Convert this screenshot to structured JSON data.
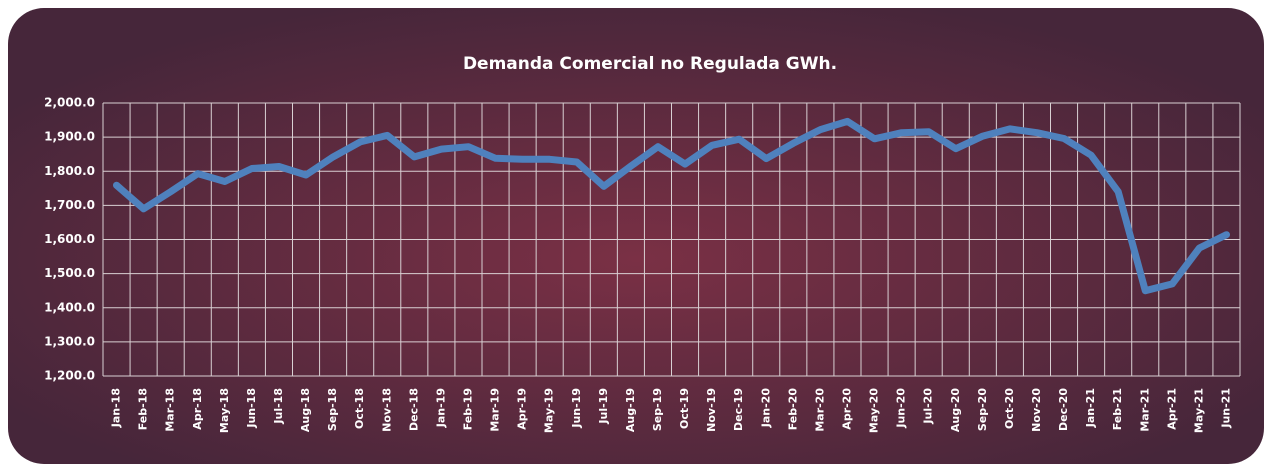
{
  "chart_data": {
    "type": "line",
    "title": "Demanda Comercial no Regulada GWh.",
    "categories": [
      "Jan-18",
      "Feb-18",
      "Mar-18",
      "Apr-18",
      "May-18",
      "Jun-18",
      "Jul-18",
      "Aug-18",
      "Sep-18",
      "Oct-18",
      "Nov-18",
      "Dec-18",
      "Jan-19",
      "Feb-19",
      "Mar-19",
      "Apr-19",
      "May-19",
      "Jun-19",
      "Jul-19",
      "Aug-19",
      "Sep-19",
      "Oct-19",
      "Nov-19",
      "Dec-19",
      "Jan-20",
      "Feb-20",
      "Mar-20",
      "Apr-20",
      "May-20",
      "Jun-20",
      "Jul-20",
      "Aug-20",
      "Sep-20",
      "Oct-20",
      "Nov-20",
      "Dec-20",
      "Jan-21",
      "Feb-21",
      "Mar-21",
      "Apr-21",
      "May-21",
      "Jun-21"
    ],
    "series": [
      {
        "name": "Demanda Comercial no Regulada",
        "color": "#4f81bd",
        "values": [
          1759,
          1690,
          1740,
          1793,
          1770,
          1808,
          1814,
          1789,
          1842,
          1886,
          1905,
          1842,
          1865,
          1872,
          1838,
          1835,
          1835,
          1827,
          1756,
          1815,
          1872,
          1821,
          1876,
          1894,
          1837,
          1882,
          1922,
          1946,
          1895,
          1913,
          1916,
          1866,
          1903,
          1924,
          1913,
          1896,
          1847,
          1740,
          1450,
          1470,
          1575,
          1614
        ]
      }
    ],
    "ylim": [
      1200,
      2000
    ],
    "yticks": [
      {
        "value": 1200,
        "label": "1,200.0"
      },
      {
        "value": 1300,
        "label": "1,300.0"
      },
      {
        "value": 1400,
        "label": "1,400.0"
      },
      {
        "value": 1500,
        "label": "1,500.0"
      },
      {
        "value": 1600,
        "label": "1,600.0"
      },
      {
        "value": 1700,
        "label": "1,700.0"
      },
      {
        "value": 1800,
        "label": "1,800.0"
      },
      {
        "value": 1900,
        "label": "1,900.0"
      },
      {
        "value": 2000,
        "label": "2,000.0"
      }
    ],
    "grid": true
  }
}
